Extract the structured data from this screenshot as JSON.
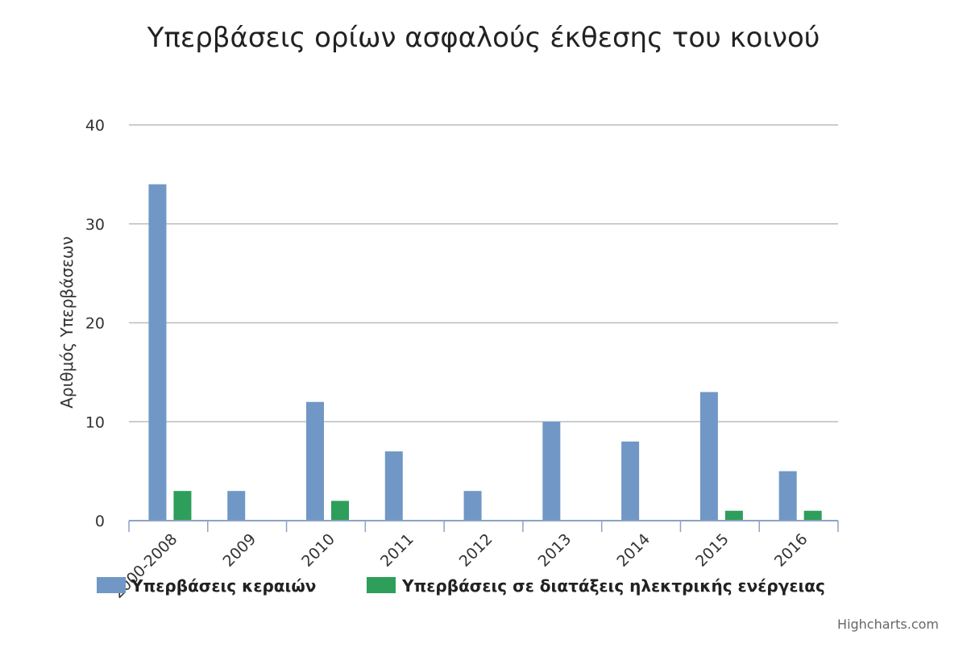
{
  "chart_data": {
    "type": "bar",
    "title": "Υπερβάσεις ορίων ασφαλούς έκθεσης του κοινού",
    "ylabel": "Αριθμός Υπερβάσεων",
    "xlabel": "",
    "categories": [
      "2000-2008",
      "2009",
      "2010",
      "2011",
      "2012",
      "2013",
      "2014",
      "2015",
      "2016"
    ],
    "series": [
      {
        "name": "Υπερβάσεις κεραιών",
        "color": "#7097c5",
        "values": [
          34,
          3,
          12,
          7,
          3,
          10,
          8,
          13,
          5
        ]
      },
      {
        "name": "Υπερβάσεις σε διατάξεις ηλεκτρικής ενέργειας",
        "color": "#2e9e5b",
        "values": [
          3,
          0,
          2,
          0,
          0,
          0,
          0,
          1,
          1
        ]
      }
    ],
    "ylim": [
      0,
      40
    ],
    "yticks": [
      0,
      10,
      20,
      30,
      40
    ],
    "grid": true,
    "legend_position": "bottom",
    "credits": "Highcharts.com"
  }
}
